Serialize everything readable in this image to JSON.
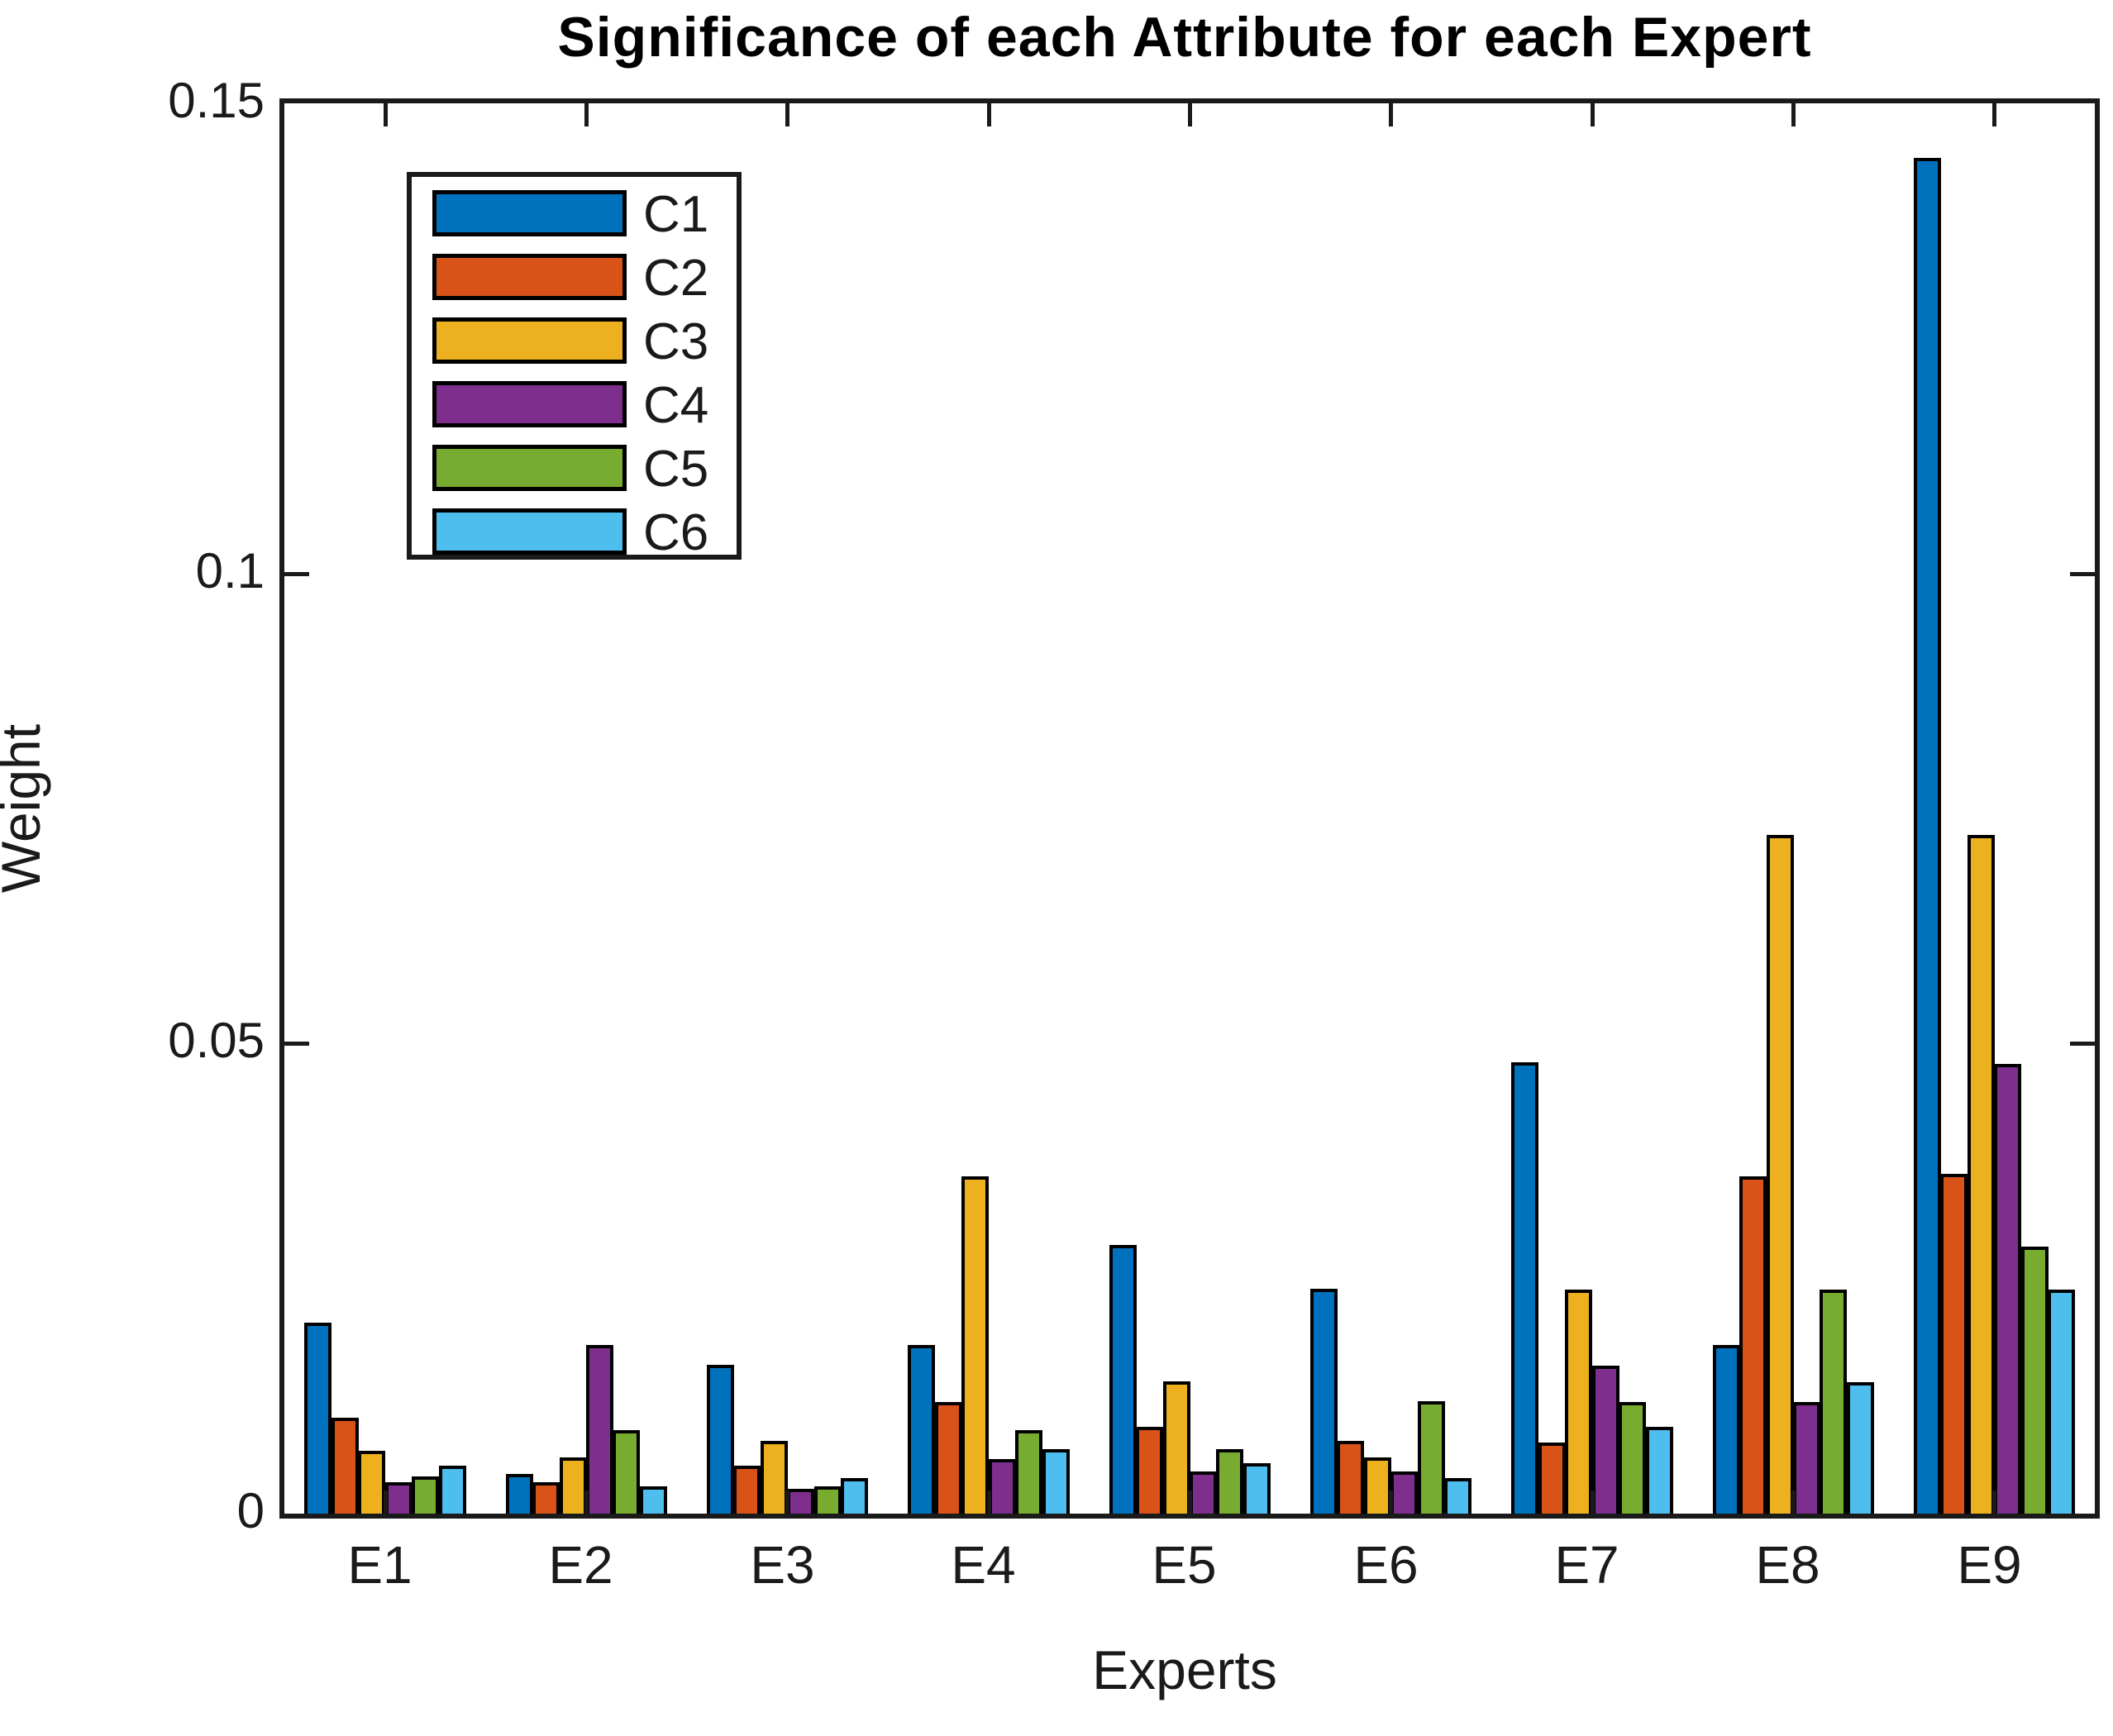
{
  "title": "Significance of each Attribute for each Expert",
  "chart_data": {
    "type": "bar",
    "title": "Significance of each Attribute for each Expert",
    "xlabel": "Experts",
    "ylabel": "Weight",
    "categories": [
      "E1",
      "E2",
      "E3",
      "E4",
      "E5",
      "E6",
      "E7",
      "E8",
      "E9"
    ],
    "series": [
      {
        "name": "C1",
        "color": "#0072BD",
        "values": [
          0.0203,
          0.0042,
          0.0158,
          0.0179,
          0.0286,
          0.0239,
          0.048,
          0.0179,
          0.1442
        ]
      },
      {
        "name": "C2",
        "color": "#D95319",
        "values": [
          0.0102,
          0.0033,
          0.0051,
          0.0119,
          0.0092,
          0.0077,
          0.0076,
          0.0359,
          0.0361
        ]
      },
      {
        "name": "C3",
        "color": "#EDB120",
        "values": [
          0.0067,
          0.006,
          0.0077,
          0.0359,
          0.0141,
          0.006,
          0.0238,
          0.0722,
          0.0722
        ]
      },
      {
        "name": "C4",
        "color": "#7E2F8E",
        "values": [
          0.0033,
          0.0179,
          0.0026,
          0.0058,
          0.0045,
          0.0045,
          0.0157,
          0.0119,
          0.0478
        ]
      },
      {
        "name": "C5",
        "color": "#77AC30",
        "values": [
          0.004,
          0.0089,
          0.0029,
          0.0089,
          0.0069,
          0.012,
          0.0119,
          0.0238,
          0.0284
        ]
      },
      {
        "name": "C6",
        "color": "#4DBEEE",
        "values": [
          0.0051,
          0.0029,
          0.0038,
          0.0069,
          0.0054,
          0.0038,
          0.0092,
          0.014,
          0.0238
        ]
      }
    ],
    "ylim": [
      0,
      0.15
    ],
    "y_ticks": [
      {
        "label": "0",
        "value": 0
      },
      {
        "label": "0.05",
        "value": 0.05
      },
      {
        "label": "0.1",
        "value": 0.1
      },
      {
        "label": "0.15",
        "value": 0.15
      }
    ],
    "grid": false,
    "legend_position": "upper-left-inside",
    "bar_edge_color": "#000000",
    "axis_color": "#1a1a1a",
    "background": "#ffffff"
  }
}
